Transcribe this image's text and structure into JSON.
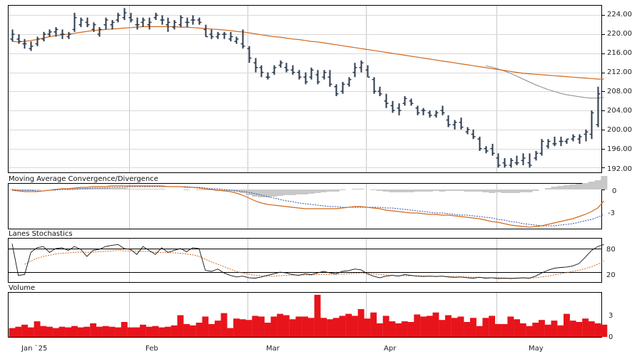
{
  "chart_data": {
    "type": "financial-multi-panel",
    "x_months": [
      "Jan `25",
      "Feb",
      "Mar",
      "Apr",
      "May"
    ],
    "price": {
      "ylim": [
        191,
        226
      ],
      "yticks": [
        "224.00",
        "220.00",
        "216.00",
        "212.00",
        "208.00",
        "204.00",
        "200.00",
        "196.00",
        "192.00"
      ],
      "ohlc": [
        [
          219,
          221,
          218.5,
          220
        ],
        [
          219,
          220,
          218,
          218.5
        ],
        [
          218,
          219,
          217,
          218
        ],
        [
          217,
          218.5,
          216.5,
          217.5
        ],
        [
          218,
          219.5,
          217.5,
          219
        ],
        [
          219,
          220.5,
          218.5,
          220
        ],
        [
          220,
          221,
          219.5,
          220.5
        ],
        [
          220.5,
          221.5,
          219.5,
          221
        ],
        [
          220,
          221,
          219,
          220
        ],
        [
          219.5,
          220.5,
          219,
          220
        ],
        [
          221,
          224.5,
          220.5,
          223.5
        ],
        [
          222,
          223.5,
          221.5,
          223
        ],
        [
          222.5,
          223.5,
          221.5,
          222
        ],
        [
          221,
          222.5,
          220.5,
          222
        ],
        [
          220,
          221.5,
          219.5,
          221
        ],
        [
          222,
          223.5,
          221,
          223
        ],
        [
          222,
          223,
          221,
          222.5
        ],
        [
          223,
          224.5,
          222.5,
          224
        ],
        [
          223.5,
          225.5,
          223,
          224.5
        ],
        [
          223.5,
          224.5,
          222.5,
          223
        ],
        [
          222,
          223.5,
          221,
          222
        ],
        [
          222.5,
          223.5,
          221.5,
          223
        ],
        [
          222,
          223.5,
          221,
          222.5
        ],
        [
          223.5,
          224.5,
          223,
          224
        ],
        [
          223,
          224,
          222,
          223
        ],
        [
          222,
          223.5,
          220.5,
          222.5
        ],
        [
          221.5,
          223,
          221,
          222.5
        ],
        [
          222,
          224,
          221.5,
          223.5
        ],
        [
          222.5,
          223.5,
          221.5,
          222.5
        ],
        [
          223,
          224,
          222,
          223
        ],
        [
          223,
          223.5,
          222,
          222.5
        ],
        [
          221,
          222,
          219.5,
          219.5
        ],
        [
          220,
          221,
          219,
          219.5
        ],
        [
          219.5,
          220.5,
          219,
          220
        ],
        [
          220,
          220.5,
          219,
          220
        ],
        [
          219,
          220.5,
          218.5,
          219.5
        ],
        [
          218.5,
          219.5,
          218,
          219
        ],
        [
          218,
          221,
          217,
          217.5
        ],
        [
          217,
          217.5,
          214,
          215
        ],
        [
          214,
          215,
          212,
          213
        ],
        [
          213,
          213.5,
          211,
          212
        ],
        [
          211,
          212,
          210.5,
          211
        ],
        [
          212,
          213.5,
          211.5,
          213
        ],
        [
          213.5,
          214.5,
          213,
          214
        ],
        [
          213,
          214,
          212,
          212.5
        ],
        [
          212.5,
          213.5,
          211.5,
          212
        ],
        [
          212,
          212.5,
          210.5,
          211
        ],
        [
          211,
          212,
          209.5,
          210
        ],
        [
          211,
          213,
          210.5,
          212.5
        ],
        [
          211.5,
          212.5,
          209.5,
          210
        ],
        [
          211,
          212.5,
          210.5,
          212
        ],
        [
          211,
          212.5,
          209,
          209.5
        ],
        [
          209,
          209.5,
          207,
          207.5
        ],
        [
          208,
          210,
          207.5,
          209.5
        ],
        [
          209.5,
          211,
          209,
          210.5
        ],
        [
          212,
          214,
          211,
          213
        ],
        [
          213,
          214.5,
          212,
          214
        ],
        [
          212.5,
          213.5,
          211,
          211
        ],
        [
          210.5,
          211,
          207.5,
          208
        ],
        [
          208,
          209,
          207,
          207.5
        ],
        [
          206,
          207.5,
          204.5,
          205.5
        ],
        [
          205,
          206,
          203.5,
          204
        ],
        [
          204.5,
          205.5,
          203,
          204
        ],
        [
          205.5,
          207,
          205,
          206.5
        ],
        [
          206,
          206.5,
          205,
          205.5
        ],
        [
          204.5,
          205,
          203,
          203.5
        ],
        [
          204,
          204.5,
          203,
          204
        ],
        [
          203.5,
          204,
          202.5,
          203
        ],
        [
          203,
          204,
          202.5,
          203.5
        ],
        [
          204,
          205,
          203,
          203.5
        ],
        [
          202,
          203,
          200.5,
          201
        ],
        [
          201,
          202,
          200,
          201.5
        ],
        [
          201.5,
          202.5,
          200,
          200.5
        ],
        [
          199.5,
          200.5,
          199,
          200
        ],
        [
          199,
          200,
          198,
          198.5
        ],
        [
          198,
          198.5,
          195.5,
          196
        ],
        [
          196,
          196.5,
          195,
          195.5
        ],
        [
          196,
          197,
          194.5,
          195
        ],
        [
          194,
          195,
          192,
          192.5
        ],
        [
          193,
          194,
          192,
          192.5
        ],
        [
          192.5,
          194,
          192,
          193.5
        ],
        [
          193,
          194.5,
          192.5,
          193
        ],
        [
          193.5,
          195,
          192.5,
          194
        ],
        [
          193,
          195,
          192,
          192.5
        ],
        [
          194,
          195.5,
          193.5,
          195
        ],
        [
          195,
          198,
          194.5,
          197.5
        ],
        [
          196.5,
          198,
          196,
          197.5
        ],
        [
          197,
          198.5,
          196.5,
          197
        ],
        [
          197.5,
          198.5,
          196.5,
          197.5
        ],
        [
          197.5,
          198,
          197,
          198
        ],
        [
          198,
          199,
          197.5,
          198.5
        ],
        [
          198,
          199,
          197,
          198.5
        ],
        [
          199,
          200,
          197.5,
          199.5
        ],
        [
          199,
          204,
          198,
          203.5
        ],
        [
          201,
          209,
          200.5,
          207.5
        ]
      ],
      "ma_slow": [
        218.5,
        218.4,
        218.5,
        218.7,
        218.9,
        219.2,
        219.5,
        219.7,
        219.9,
        220.0,
        220.2,
        220.4,
        220.6,
        220.8,
        220.9,
        221.0,
        221.1,
        221.2,
        221.3,
        221.4,
        221.5,
        221.6,
        221.6,
        221.6,
        221.6,
        221.6,
        221.6,
        221.5,
        221.5,
        221.4,
        221.3,
        221.2,
        221.1,
        221.0,
        220.9,
        220.8,
        220.6,
        220.5,
        220.3,
        220.1,
        219.9,
        219.7,
        219.5,
        219.4,
        219.2,
        219.0,
        218.9,
        218.7,
        218.5,
        218.4,
        218.2,
        218.0,
        217.8,
        217.6,
        217.4,
        217.2,
        217.0,
        216.8,
        216.6,
        216.4,
        216.2,
        216.0,
        215.8,
        215.6,
        215.4,
        215.2,
        215.0,
        214.8,
        214.6,
        214.4,
        214.2,
        214.0,
        213.8,
        213.6,
        213.4,
        213.2,
        213.0,
        212.8,
        212.6,
        212.4,
        212.2,
        212.0,
        211.8,
        211.7,
        211.6,
        211.5,
        211.4,
        211.3,
        211.2,
        211.1,
        211.0,
        210.9,
        210.8,
        210.7,
        210.6,
        210.6
      ],
      "ma_fast": [
        null,
        null,
        null,
        null,
        null,
        null,
        null,
        null,
        null,
        null,
        null,
        null,
        null,
        null,
        null,
        null,
        null,
        null,
        null,
        null,
        null,
        null,
        null,
        null,
        null,
        null,
        null,
        null,
        null,
        null,
        null,
        null,
        null,
        null,
        null,
        null,
        null,
        null,
        null,
        null,
        null,
        null,
        null,
        null,
        null,
        null,
        null,
        null,
        null,
        null,
        null,
        null,
        null,
        null,
        null,
        null,
        null,
        null,
        null,
        null,
        null,
        null,
        null,
        null,
        null,
        null,
        null,
        null,
        null,
        null,
        null,
        null,
        null,
        null,
        null,
        null,
        213.4,
        213.1,
        212.7,
        212.3,
        211.8,
        211.2,
        210.6,
        210.0,
        209.4,
        208.9,
        208.4,
        208.0,
        207.6,
        207.3,
        207.1,
        206.9,
        206.7,
        206.6,
        206.6,
        206.7
      ]
    },
    "macd": {
      "title": "Moving Average Convergence/Divergence",
      "ylim": [
        -5.5,
        0.8
      ],
      "yticks": [
        "0",
        "-3"
      ],
      "macd": [
        -0.1,
        -0.2,
        -0.3,
        -0.3,
        -0.3,
        -0.2,
        -0.1,
        0.0,
        0.1,
        0.1,
        0.2,
        0.3,
        0.3,
        0.4,
        0.4,
        0.4,
        0.5,
        0.5,
        0.5,
        0.5,
        0.5,
        0.5,
        0.5,
        0.5,
        0.5,
        0.4,
        0.4,
        0.4,
        0.3,
        0.3,
        0.2,
        0.1,
        0.0,
        -0.1,
        -0.2,
        -0.3,
        -0.5,
        -0.8,
        -1.2,
        -1.6,
        -1.9,
        -2.1,
        -2.2,
        -2.3,
        -2.4,
        -2.5,
        -2.6,
        -2.7,
        -2.7,
        -2.7,
        -2.7,
        -2.7,
        -2.7,
        -2.6,
        -2.5,
        -2.4,
        -2.4,
        -2.5,
        -2.6,
        -2.7,
        -2.9,
        -3.0,
        -3.1,
        -3.2,
        -3.3,
        -3.3,
        -3.4,
        -3.5,
        -3.5,
        -3.6,
        -3.6,
        -3.7,
        -3.8,
        -3.9,
        -4.0,
        -4.1,
        -4.3,
        -4.5,
        -4.6,
        -4.8,
        -5.0,
        -5.1,
        -5.2,
        -5.3,
        -5.2,
        -5.1,
        -4.9,
        -4.7,
        -4.5,
        -4.3,
        -4.1,
        -3.8,
        -3.5,
        -3.1,
        -2.6,
        -1.6
      ],
      "signal": [
        0.0,
        -0.1,
        -0.1,
        -0.1,
        -0.2,
        -0.2,
        -0.1,
        -0.1,
        0.0,
        0.0,
        0.0,
        0.1,
        0.1,
        0.2,
        0.2,
        0.2,
        0.3,
        0.3,
        0.3,
        0.4,
        0.4,
        0.4,
        0.4,
        0.4,
        0.4,
        0.4,
        0.4,
        0.4,
        0.4,
        0.3,
        0.3,
        0.2,
        0.1,
        0.1,
        0.0,
        -0.1,
        -0.2,
        -0.3,
        -0.4,
        -0.6,
        -0.8,
        -1.0,
        -1.2,
        -1.4,
        -1.6,
        -1.7,
        -1.9,
        -2.0,
        -2.1,
        -2.2,
        -2.3,
        -2.4,
        -2.4,
        -2.5,
        -2.5,
        -2.5,
        -2.5,
        -2.5,
        -2.5,
        -2.5,
        -2.6,
        -2.6,
        -2.7,
        -2.8,
        -2.9,
        -3.0,
        -3.1,
        -3.2,
        -3.3,
        -3.3,
        -3.4,
        -3.5,
        -3.6,
        -3.6,
        -3.7,
        -3.8,
        -3.9,
        -4.0,
        -4.2,
        -4.3,
        -4.5,
        -4.6,
        -4.8,
        -4.9,
        -5.0,
        -5.1,
        -5.1,
        -5.1,
        -5.0,
        -4.9,
        -4.8,
        -4.6,
        -4.4,
        -4.2,
        -3.9,
        -3.5
      ]
    },
    "stochastic": {
      "title": "Lanes Stochastics",
      "ylim": [
        -5,
        105
      ],
      "yticks": [
        "80",
        "20"
      ],
      "k": [
        92,
        12,
        14,
        70,
        82,
        85,
        70,
        80,
        82,
        75,
        85,
        78,
        60,
        75,
        78,
        85,
        88,
        90,
        80,
        78,
        65,
        85,
        75,
        65,
        82,
        70,
        75,
        80,
        72,
        82,
        80,
        25,
        22,
        28,
        18,
        12,
        8,
        10,
        6,
        5,
        8,
        12,
        16,
        20,
        18,
        14,
        12,
        16,
        14,
        18,
        22,
        18,
        16,
        22,
        24,
        28,
        26,
        16,
        10,
        6,
        10,
        12,
        10,
        14,
        12,
        10,
        9,
        10,
        9,
        10,
        8,
        7,
        8,
        6,
        5,
        7,
        5,
        6,
        4,
        5,
        4,
        5,
        6,
        5,
        10,
        18,
        25,
        30,
        32,
        33,
        36,
        42,
        58,
        75,
        85,
        90
      ],
      "d": [
        null,
        null,
        40,
        48,
        55,
        60,
        63,
        66,
        68,
        69,
        70,
        71,
        70,
        71,
        72,
        73,
        74,
        75,
        74,
        74,
        73,
        73,
        72,
        70,
        70,
        70,
        69,
        68,
        66,
        64,
        60,
        53,
        46,
        40,
        34,
        28,
        22,
        18,
        15,
        12,
        11,
        10,
        10,
        11,
        12,
        13,
        13,
        13,
        13,
        14,
        14,
        14,
        15,
        15,
        16,
        17,
        18,
        17,
        16,
        14,
        13,
        12,
        11,
        11,
        11,
        11,
        11,
        10,
        10,
        10,
        9,
        9,
        8,
        8,
        7,
        7,
        6,
        6,
        6,
        5,
        5,
        5,
        5,
        5,
        6,
        8,
        10,
        13,
        16,
        19,
        22,
        25,
        29,
        34,
        40,
        48
      ]
    },
    "volume": {
      "title": "Volume",
      "ylim": [
        0,
        6.5
      ],
      "yticks": [
        "3",
        "0"
      ],
      "values": [
        1.3,
        1.5,
        1.8,
        1.4,
        2.3,
        1.6,
        1.5,
        1.3,
        1.5,
        1.4,
        1.6,
        1.4,
        1.5,
        2.0,
        1.5,
        1.6,
        1.5,
        1.4,
        2.2,
        1.4,
        1.4,
        1.8,
        1.5,
        1.6,
        1.4,
        1.5,
        1.7,
        3.2,
        1.9,
        1.7,
        2.1,
        3.0,
        1.9,
        2.4,
        3.5,
        1.3,
        2.7,
        2.6,
        2.5,
        3.1,
        3.0,
        2.1,
        3.0,
        3.4,
        3.2,
        2.6,
        3.0,
        3.0,
        2.8,
        6.2,
        2.8,
        2.6,
        2.8,
        3.1,
        3.4,
        3.1,
        4.1,
        2.7,
        3.6,
        2.0,
        3.1,
        2.3,
        2.0,
        2.3,
        2.2,
        3.3,
        3.0,
        3.1,
        3.6,
        2.5,
        3.2,
        2.8,
        3.0,
        2.2,
        2.8,
        1.6,
        2.8,
        3.1,
        1.9,
        1.9,
        3.0,
        2.6,
        2.0,
        1.6,
        2.1,
        2.5,
        1.8,
        2.4,
        1.7,
        3.4,
        2.4,
        2.2,
        2.7,
        2.3,
        2.0,
        1.8
      ]
    }
  }
}
